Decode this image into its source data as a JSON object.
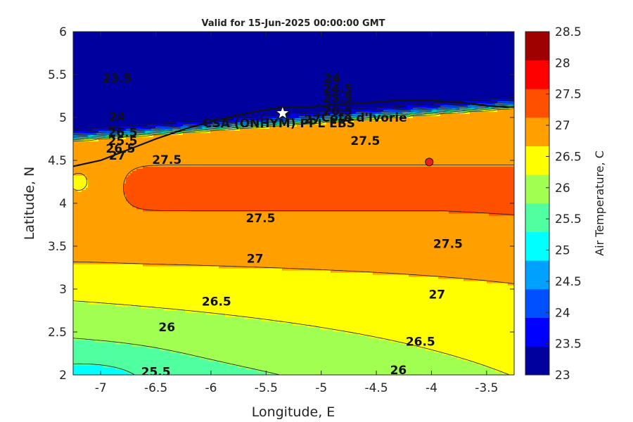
{
  "chart_data": {
    "type": "contour",
    "title": "Valid for 15-Jun-2025 00:00:00 GMT",
    "xlabel": "Longitude, E",
    "ylabel": "Latitude, N",
    "colorbar_label": "Air Temperature, C",
    "xlim": [
      -7.25,
      -3.25
    ],
    "ylim": [
      2,
      6
    ],
    "xticks": [
      -7,
      -6.5,
      -6,
      -5.5,
      -5,
      -4.5,
      -4,
      -3.5
    ],
    "xtick_labels": [
      "-7",
      "-6.5",
      "-6",
      "-5.5",
      "-5",
      "-4.5",
      "-4",
      "-3.5"
    ],
    "yticks": [
      2,
      2.5,
      3,
      3.5,
      4,
      4.5,
      5,
      5.5,
      6
    ],
    "ytick_labels": [
      "2",
      "2.5",
      "3",
      "3.5",
      "4",
      "4.5",
      "5",
      "5.5",
      "6"
    ],
    "levels": [
      23,
      23.5,
      24,
      24.5,
      25,
      25.5,
      26,
      26.5,
      27,
      27.5,
      28,
      28.5
    ],
    "level_labels": [
      "23",
      "23.5",
      "24",
      "24.5",
      "25",
      "25.5",
      "26",
      "26.5",
      "27",
      "27.5",
      "28",
      "28.5"
    ],
    "colors": [
      "#00009f",
      "#0000ff",
      "#0050ff",
      "#00a0ff",
      "#00ffff",
      "#50ff9f",
      "#a0ff50",
      "#ffff00",
      "#ffa000",
      "#ff5000",
      "#ff0000",
      "#9f0000"
    ],
    "contour_labels": [
      {
        "text": "23.5",
        "lon": -6.85,
        "lat": 5.45
      },
      {
        "text": "24",
        "lon": -4.9,
        "lat": 5.45
      },
      {
        "text": "24.5",
        "lon": -4.85,
        "lat": 5.33
      },
      {
        "text": "25.5",
        "lon": -4.85,
        "lat": 5.22
      },
      {
        "text": "26.5",
        "lon": -4.85,
        "lat": 5.07
      },
      {
        "text": "24",
        "lon": -6.85,
        "lat": 5.0
      },
      {
        "text": "26.5",
        "lon": -6.8,
        "lat": 4.82
      },
      {
        "text": "25.5",
        "lon": -6.8,
        "lat": 4.72
      },
      {
        "text": "26.5",
        "lon": -6.82,
        "lat": 4.63
      },
      {
        "text": "27",
        "lon": -6.85,
        "lat": 4.55
      },
      {
        "text": "27",
        "lon": -5.08,
        "lat": 4.97
      },
      {
        "text": "27.5",
        "lon": -4.6,
        "lat": 4.72
      },
      {
        "text": "27.5",
        "lon": -6.4,
        "lat": 4.5
      },
      {
        "text": "27.5",
        "lon": -5.55,
        "lat": 3.82
      },
      {
        "text": "27.5",
        "lon": -3.85,
        "lat": 3.52
      },
      {
        "text": "27",
        "lon": -5.6,
        "lat": 3.35
      },
      {
        "text": "26.5",
        "lon": -5.95,
        "lat": 2.85
      },
      {
        "text": "27",
        "lon": -3.95,
        "lat": 2.93
      },
      {
        "text": "26",
        "lon": -6.4,
        "lat": 2.55
      },
      {
        "text": "26.5",
        "lon": -4.1,
        "lat": 2.38
      },
      {
        "text": "26",
        "lon": -4.3,
        "lat": 2.05
      },
      {
        "text": "25.5",
        "lon": -6.5,
        "lat": 2.03
      }
    ],
    "annotations": [
      {
        "text": "CSA (ONHYM) PPL EBS",
        "marker": "star",
        "lon": -5.35,
        "lat": 5.05
      },
      {
        "text": "Cote d'Ivorie",
        "marker": "none",
        "lon": -5.0,
        "lat": 4.95
      },
      {
        "text": "",
        "marker": "circle",
        "lon": -4.02,
        "lat": 4.48
      }
    ]
  }
}
